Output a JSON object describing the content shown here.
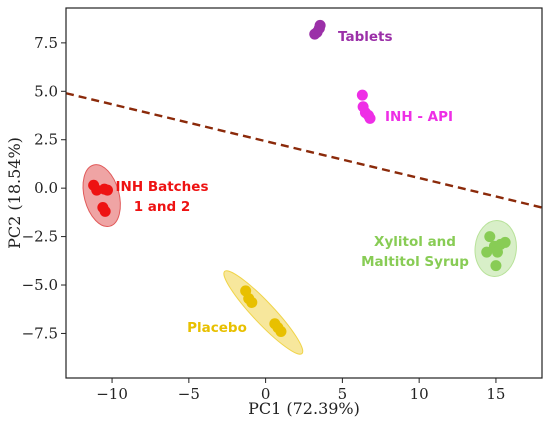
{
  "chart_data": {
    "type": "scatter",
    "xlabel": "PC1 (72.39%)",
    "ylabel": "PC2 (18.54%)",
    "xlim": [
      -13,
      18
    ],
    "ylim": [
      -9.8,
      9.3
    ],
    "x_ticks": [
      "−10",
      "−5",
      "0",
      "5",
      "10",
      "15"
    ],
    "y_ticks": [
      "7.5",
      "5.0",
      "2.5",
      "0.0",
      "−2.5",
      "−5.0",
      "−7.5"
    ],
    "grid": false,
    "divider_line": {
      "x": [
        -13,
        18
      ],
      "y": [
        4.9,
        -1.0
      ],
      "color": "#8b2a0a",
      "style": "dashed"
    },
    "groups": [
      {
        "label": "Tablets",
        "color": "#9b30a8",
        "points": [
          [
            3.2,
            7.95
          ],
          [
            3.35,
            8.05
          ],
          [
            3.5,
            8.25
          ],
          [
            3.55,
            8.4
          ]
        ]
      },
      {
        "label": "INH - API",
        "color": "#ee2ee6",
        "points": [
          [
            6.3,
            4.8
          ],
          [
            6.35,
            4.2
          ],
          [
            6.5,
            3.9
          ],
          [
            6.7,
            3.75
          ],
          [
            6.8,
            3.6
          ]
        ]
      },
      {
        "label": "INH Batches\n1 and 2",
        "color": "#ee1212",
        "ellipse_color": "#e15a5a",
        "points": [
          [
            -11.2,
            0.15
          ],
          [
            -11.0,
            -0.1
          ],
          [
            -10.5,
            -0.05
          ],
          [
            -10.3,
            -0.1
          ],
          [
            -10.6,
            -1.0
          ],
          [
            -10.45,
            -1.2
          ]
        ]
      },
      {
        "label": "Xylitol and\nMaltitol Syrup",
        "color": "#88cc55",
        "ellipse_color": "#b8e29a",
        "points": [
          [
            14.6,
            -2.5
          ],
          [
            14.4,
            -3.3
          ],
          [
            14.9,
            -3.0
          ],
          [
            15.3,
            -2.9
          ],
          [
            15.6,
            -2.8
          ],
          [
            15.1,
            -3.3
          ],
          [
            15.0,
            -4.0
          ]
        ]
      },
      {
        "label": "Placebo",
        "color": "#e8c000",
        "ellipse_color": "#f0d44a",
        "points": [
          [
            -1.3,
            -5.3
          ],
          [
            -1.1,
            -5.7
          ],
          [
            -0.9,
            -5.9
          ],
          [
            0.6,
            -7.0
          ],
          [
            0.8,
            -7.2
          ],
          [
            1.0,
            -7.4
          ]
        ]
      }
    ]
  }
}
